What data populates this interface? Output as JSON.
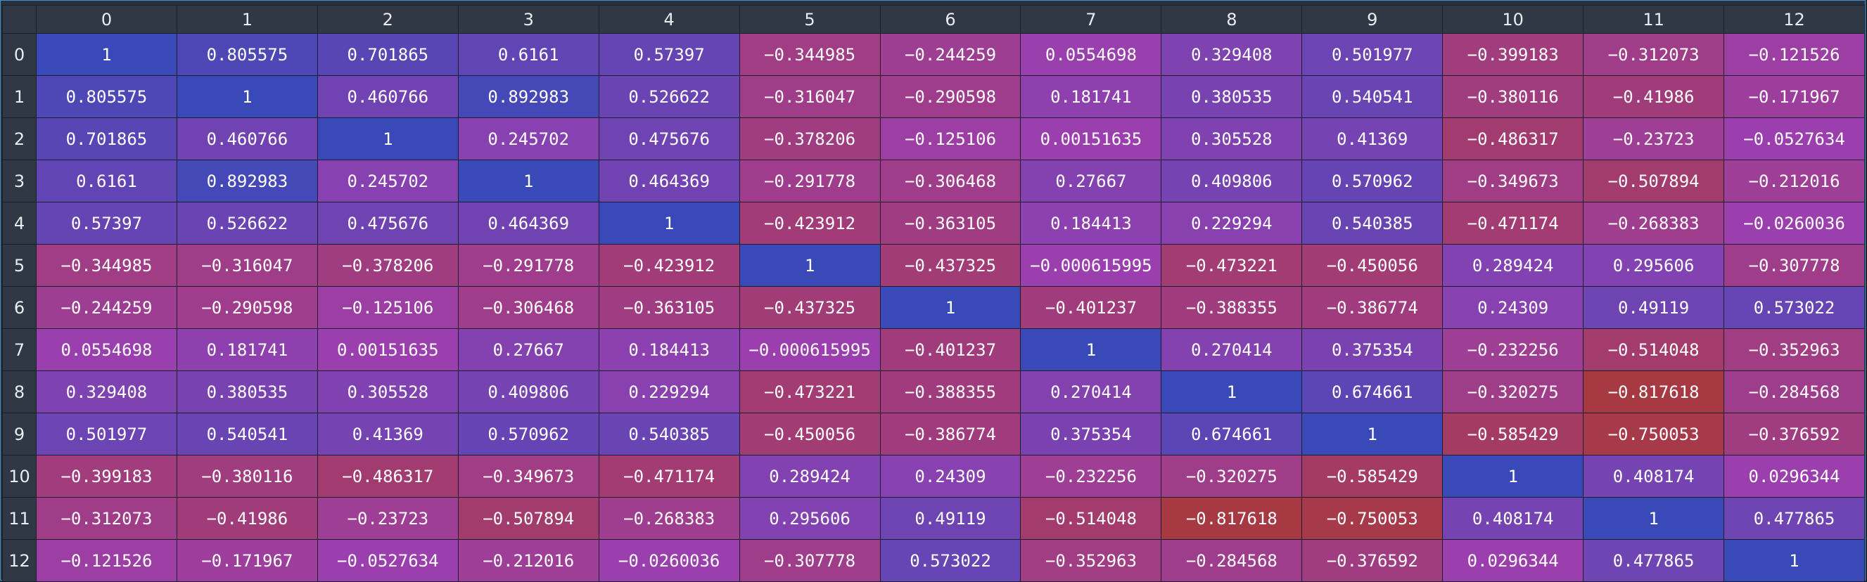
{
  "columns": [
    "0",
    "1",
    "2",
    "3",
    "4",
    "5",
    "6",
    "7",
    "8",
    "9",
    "10",
    "11",
    "12"
  ],
  "rows": [
    {
      "label": "0",
      "cells": [
        {
          "text": "1",
          "v": 1
        },
        {
          "text": "0.805575",
          "v": 0.805575
        },
        {
          "text": "0.701865",
          "v": 0.701865
        },
        {
          "text": "0.6161",
          "v": 0.6161
        },
        {
          "text": "0.57397",
          "v": 0.57397
        },
        {
          "text": "−0.344985",
          "v": -0.344985
        },
        {
          "text": "−0.244259",
          "v": -0.244259
        },
        {
          "text": "0.0554698",
          "v": 0.0554698
        },
        {
          "text": "0.329408",
          "v": 0.329408
        },
        {
          "text": "0.501977",
          "v": 0.501977
        },
        {
          "text": "−0.399183",
          "v": -0.399183
        },
        {
          "text": "−0.312073",
          "v": -0.312073
        },
        {
          "text": "−0.121526",
          "v": -0.121526
        }
      ]
    },
    {
      "label": "1",
      "cells": [
        {
          "text": "0.805575",
          "v": 0.805575
        },
        {
          "text": "1",
          "v": 1
        },
        {
          "text": "0.460766",
          "v": 0.460766
        },
        {
          "text": "0.892983",
          "v": 0.892983
        },
        {
          "text": "0.526622",
          "v": 0.526622
        },
        {
          "text": "−0.316047",
          "v": -0.316047
        },
        {
          "text": "−0.290598",
          "v": -0.290598
        },
        {
          "text": "0.181741",
          "v": 0.181741
        },
        {
          "text": "0.380535",
          "v": 0.380535
        },
        {
          "text": "0.540541",
          "v": 0.540541
        },
        {
          "text": "−0.380116",
          "v": -0.380116
        },
        {
          "text": "−0.41986",
          "v": -0.41986
        },
        {
          "text": "−0.171967",
          "v": -0.171967
        }
      ]
    },
    {
      "label": "2",
      "cells": [
        {
          "text": "0.701865",
          "v": 0.701865
        },
        {
          "text": "0.460766",
          "v": 0.460766
        },
        {
          "text": "1",
          "v": 1
        },
        {
          "text": "0.245702",
          "v": 0.245702
        },
        {
          "text": "0.475676",
          "v": 0.475676
        },
        {
          "text": "−0.378206",
          "v": -0.378206
        },
        {
          "text": "−0.125106",
          "v": -0.125106
        },
        {
          "text": "0.00151635",
          "v": 0.00151635
        },
        {
          "text": "0.305528",
          "v": 0.305528
        },
        {
          "text": "0.41369",
          "v": 0.41369
        },
        {
          "text": "−0.486317",
          "v": -0.486317
        },
        {
          "text": "−0.23723",
          "v": -0.23723
        },
        {
          "text": "−0.0527634",
          "v": -0.0527634
        }
      ]
    },
    {
      "label": "3",
      "cells": [
        {
          "text": "0.6161",
          "v": 0.6161
        },
        {
          "text": "0.892983",
          "v": 0.892983
        },
        {
          "text": "0.245702",
          "v": 0.245702
        },
        {
          "text": "1",
          "v": 1
        },
        {
          "text": "0.464369",
          "v": 0.464369
        },
        {
          "text": "−0.291778",
          "v": -0.291778
        },
        {
          "text": "−0.306468",
          "v": -0.306468
        },
        {
          "text": "0.27667",
          "v": 0.27667
        },
        {
          "text": "0.409806",
          "v": 0.409806
        },
        {
          "text": "0.570962",
          "v": 0.570962
        },
        {
          "text": "−0.349673",
          "v": -0.349673
        },
        {
          "text": "−0.507894",
          "v": -0.507894
        },
        {
          "text": "−0.212016",
          "v": -0.212016
        }
      ]
    },
    {
      "label": "4",
      "cells": [
        {
          "text": "0.57397",
          "v": 0.57397
        },
        {
          "text": "0.526622",
          "v": 0.526622
        },
        {
          "text": "0.475676",
          "v": 0.475676
        },
        {
          "text": "0.464369",
          "v": 0.464369
        },
        {
          "text": "1",
          "v": 1
        },
        {
          "text": "−0.423912",
          "v": -0.423912
        },
        {
          "text": "−0.363105",
          "v": -0.363105
        },
        {
          "text": "0.184413",
          "v": 0.184413
        },
        {
          "text": "0.229294",
          "v": 0.229294
        },
        {
          "text": "0.540385",
          "v": 0.540385
        },
        {
          "text": "−0.471174",
          "v": -0.471174
        },
        {
          "text": "−0.268383",
          "v": -0.268383
        },
        {
          "text": "−0.0260036",
          "v": -0.0260036
        }
      ]
    },
    {
      "label": "5",
      "cells": [
        {
          "text": "−0.344985",
          "v": -0.344985
        },
        {
          "text": "−0.316047",
          "v": -0.316047
        },
        {
          "text": "−0.378206",
          "v": -0.378206
        },
        {
          "text": "−0.291778",
          "v": -0.291778
        },
        {
          "text": "−0.423912",
          "v": -0.423912
        },
        {
          "text": "1",
          "v": 1
        },
        {
          "text": "−0.437325",
          "v": -0.437325
        },
        {
          "text": "−0.000615995",
          "v": -0.000615995
        },
        {
          "text": "−0.473221",
          "v": -0.473221
        },
        {
          "text": "−0.450056",
          "v": -0.450056
        },
        {
          "text": "0.289424",
          "v": 0.289424
        },
        {
          "text": "0.295606",
          "v": 0.295606
        },
        {
          "text": "−0.307778",
          "v": -0.307778
        }
      ]
    },
    {
      "label": "6",
      "cells": [
        {
          "text": "−0.244259",
          "v": -0.244259
        },
        {
          "text": "−0.290598",
          "v": -0.290598
        },
        {
          "text": "−0.125106",
          "v": -0.125106
        },
        {
          "text": "−0.306468",
          "v": -0.306468
        },
        {
          "text": "−0.363105",
          "v": -0.363105
        },
        {
          "text": "−0.437325",
          "v": -0.437325
        },
        {
          "text": "1",
          "v": 1
        },
        {
          "text": "−0.401237",
          "v": -0.401237
        },
        {
          "text": "−0.388355",
          "v": -0.388355
        },
        {
          "text": "−0.386774",
          "v": -0.386774
        },
        {
          "text": "0.24309",
          "v": 0.24309
        },
        {
          "text": "0.49119",
          "v": 0.49119
        },
        {
          "text": "0.573022",
          "v": 0.573022
        }
      ]
    },
    {
      "label": "7",
      "cells": [
        {
          "text": "0.0554698",
          "v": 0.0554698
        },
        {
          "text": "0.181741",
          "v": 0.181741
        },
        {
          "text": "0.00151635",
          "v": 0.00151635
        },
        {
          "text": "0.27667",
          "v": 0.27667
        },
        {
          "text": "0.184413",
          "v": 0.184413
        },
        {
          "text": "−0.000615995",
          "v": -0.000615995
        },
        {
          "text": "−0.401237",
          "v": -0.401237
        },
        {
          "text": "1",
          "v": 1
        },
        {
          "text": "0.270414",
          "v": 0.270414
        },
        {
          "text": "0.375354",
          "v": 0.375354
        },
        {
          "text": "−0.232256",
          "v": -0.232256
        },
        {
          "text": "−0.514048",
          "v": -0.514048
        },
        {
          "text": "−0.352963",
          "v": -0.352963
        }
      ]
    },
    {
      "label": "8",
      "cells": [
        {
          "text": "0.329408",
          "v": 0.329408
        },
        {
          "text": "0.380535",
          "v": 0.380535
        },
        {
          "text": "0.305528",
          "v": 0.305528
        },
        {
          "text": "0.409806",
          "v": 0.409806
        },
        {
          "text": "0.229294",
          "v": 0.229294
        },
        {
          "text": "−0.473221",
          "v": -0.473221
        },
        {
          "text": "−0.388355",
          "v": -0.388355
        },
        {
          "text": "0.270414",
          "v": 0.270414
        },
        {
          "text": "1",
          "v": 1
        },
        {
          "text": "0.674661",
          "v": 0.674661
        },
        {
          "text": "−0.320275",
          "v": -0.320275
        },
        {
          "text": "−0.817618",
          "v": -0.817618
        },
        {
          "text": "−0.284568",
          "v": -0.284568
        }
      ]
    },
    {
      "label": "9",
      "cells": [
        {
          "text": "0.501977",
          "v": 0.501977
        },
        {
          "text": "0.540541",
          "v": 0.540541
        },
        {
          "text": "0.41369",
          "v": 0.41369
        },
        {
          "text": "0.570962",
          "v": 0.570962
        },
        {
          "text": "0.540385",
          "v": 0.540385
        },
        {
          "text": "−0.450056",
          "v": -0.450056
        },
        {
          "text": "−0.386774",
          "v": -0.386774
        },
        {
          "text": "0.375354",
          "v": 0.375354
        },
        {
          "text": "0.674661",
          "v": 0.674661
        },
        {
          "text": "1",
          "v": 1
        },
        {
          "text": "−0.585429",
          "v": -0.585429
        },
        {
          "text": "−0.750053",
          "v": -0.750053
        },
        {
          "text": "−0.376592",
          "v": -0.376592
        }
      ]
    },
    {
      "label": "10",
      "cells": [
        {
          "text": "−0.399183",
          "v": -0.399183
        },
        {
          "text": "−0.380116",
          "v": -0.380116
        },
        {
          "text": "−0.486317",
          "v": -0.486317
        },
        {
          "text": "−0.349673",
          "v": -0.349673
        },
        {
          "text": "−0.471174",
          "v": -0.471174
        },
        {
          "text": "0.289424",
          "v": 0.289424
        },
        {
          "text": "0.24309",
          "v": 0.24309
        },
        {
          "text": "−0.232256",
          "v": -0.232256
        },
        {
          "text": "−0.320275",
          "v": -0.320275
        },
        {
          "text": "−0.585429",
          "v": -0.585429
        },
        {
          "text": "1",
          "v": 1
        },
        {
          "text": "0.408174",
          "v": 0.408174
        },
        {
          "text": "0.0296344",
          "v": 0.0296344
        }
      ]
    },
    {
      "label": "11",
      "cells": [
        {
          "text": "−0.312073",
          "v": -0.312073
        },
        {
          "text": "−0.41986",
          "v": -0.41986
        },
        {
          "text": "−0.23723",
          "v": -0.23723
        },
        {
          "text": "−0.507894",
          "v": -0.507894
        },
        {
          "text": "−0.268383",
          "v": -0.268383
        },
        {
          "text": "0.295606",
          "v": 0.295606
        },
        {
          "text": "0.49119",
          "v": 0.49119
        },
        {
          "text": "−0.514048",
          "v": -0.514048
        },
        {
          "text": "−0.817618",
          "v": -0.817618
        },
        {
          "text": "−0.750053",
          "v": -0.750053
        },
        {
          "text": "0.408174",
          "v": 0.408174
        },
        {
          "text": "1",
          "v": 1
        },
        {
          "text": "0.477865",
          "v": 0.477865
        }
      ]
    },
    {
      "label": "12",
      "cells": [
        {
          "text": "−0.121526",
          "v": -0.121526
        },
        {
          "text": "−0.171967",
          "v": -0.171967
        },
        {
          "text": "−0.0527634",
          "v": -0.0527634
        },
        {
          "text": "−0.212016",
          "v": -0.212016
        },
        {
          "text": "−0.0260036",
          "v": -0.0260036
        },
        {
          "text": "−0.307778",
          "v": -0.307778
        },
        {
          "text": "0.573022",
          "v": 0.573022
        },
        {
          "text": "−0.352963",
          "v": -0.352963
        },
        {
          "text": "−0.284568",
          "v": -0.284568
        },
        {
          "text": "−0.376592",
          "v": -0.376592
        },
        {
          "text": "0.0296344",
          "v": 0.0296344
        },
        {
          "text": "0.477865",
          "v": 0.477865
        },
        {
          "text": "1",
          "v": 1
        }
      ]
    }
  ],
  "colors": {
    "background": "#28303b",
    "header_bg": "#2f3844",
    "cell_border": "#1a2029",
    "frame_border": "#4a90c8",
    "scale_low": "#a8393d",
    "scale_mid": "#9b3fae",
    "scale_high": "#3a49b8"
  }
}
